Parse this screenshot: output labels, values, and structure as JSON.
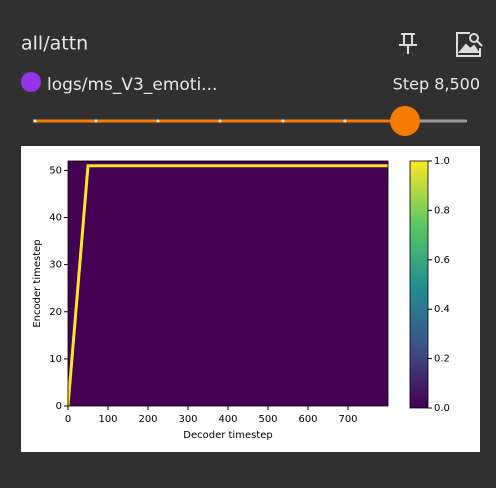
{
  "header": {
    "title": "all/attn"
  },
  "run": {
    "name": "logs/ms_V3_emoti...",
    "color": "#9334e6",
    "step": "Step 8,500"
  },
  "chart_data": {
    "type": "heatmap",
    "xlabel": "Decoder timestep",
    "ylabel": "Encoder timestep",
    "background": "#440154",
    "series": [
      {
        "color": "#fde725",
        "x": [
          0,
          50,
          800
        ],
        "values": [
          0,
          51,
          51
        ]
      }
    ],
    "xlim": [
      0,
      800
    ],
    "xticks": [
      0,
      100,
      200,
      300,
      400,
      500,
      600,
      700
    ],
    "ylim": [
      0,
      52
    ],
    "yticks": [
      0,
      10,
      20,
      30,
      40,
      50
    ],
    "colorbar": {
      "colors": [
        "#440154",
        "#3b528b",
        "#21918c",
        "#5ec962",
        "#fde725"
      ],
      "ylim": [
        0,
        1
      ],
      "yticks": [
        {
          "value": 0,
          "label": "0.0"
        },
        {
          "value": 0.2,
          "label": "0.2"
        },
        {
          "value": 0.4,
          "label": "0.4"
        },
        {
          "value": 0.6,
          "label": "0.6"
        },
        {
          "value": 0.8,
          "label": "0.8"
        },
        {
          "value": 1,
          "label": "1.0"
        }
      ]
    }
  }
}
